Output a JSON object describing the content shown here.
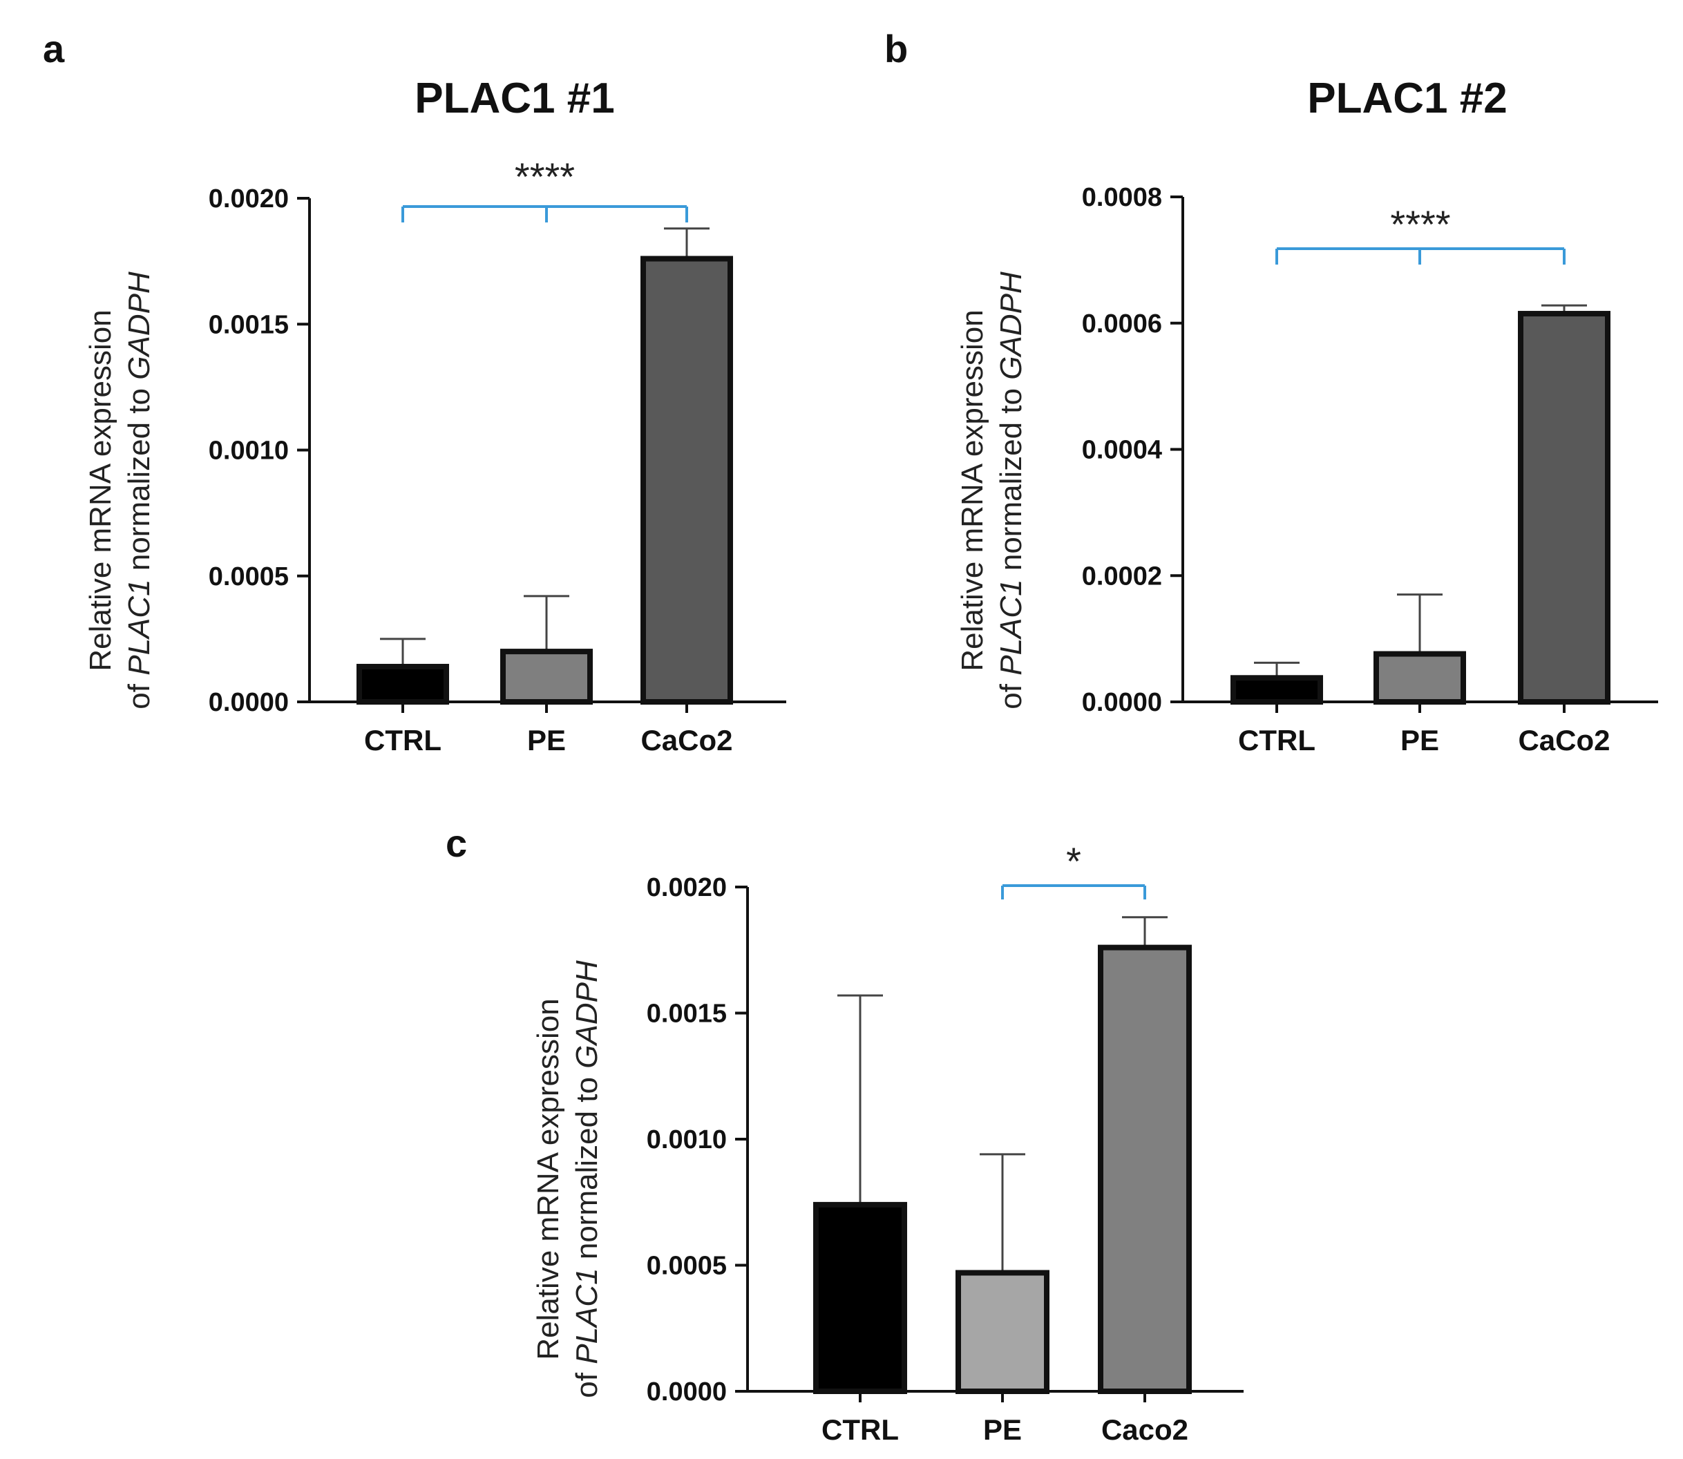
{
  "chart_data": [
    {
      "type": "bar",
      "panel": "a",
      "title": "PLAC1 #1",
      "xlabel": "",
      "ylabel_line1": "Relative mRNA expression",
      "ylabel_line2": [
        "of ",
        "PLAC1",
        " normalized to ",
        "GADPH"
      ],
      "ylim": [
        0,
        0.002
      ],
      "yticks": [
        0,
        0.0005,
        0.001,
        0.0015,
        0.002
      ],
      "ytick_labels": [
        "0.0000",
        "0.0005",
        "0.0010",
        "0.0015",
        "0.0020"
      ],
      "categories": [
        "CTRL",
        "PE",
        "CaCo2"
      ],
      "values": [
        0.00014,
        0.0002,
        0.00176
      ],
      "errors": [
        0.00011,
        0.00022,
        0.00012
      ],
      "colors": [
        "#000000",
        "#7f7f7f",
        "#595959"
      ],
      "significance": {
        "label": "****",
        "from": 0,
        "to": 2,
        "mid_tick": true
      }
    },
    {
      "type": "bar",
      "panel": "b",
      "title": "PLAC1 #2",
      "xlabel": "",
      "ylabel_line1": "Relative mRNA expression",
      "ylabel_line2": [
        "of ",
        "PLAC1",
        " normalized to ",
        "GADPH"
      ],
      "ylim": [
        0,
        0.0008
      ],
      "yticks": [
        0,
        0.0002,
        0.0004,
        0.0006,
        0.0008
      ],
      "ytick_labels": [
        "0.0000",
        "0.0002",
        "0.0004",
        "0.0006",
        "0.0008"
      ],
      "categories": [
        "CTRL",
        "PE",
        "CaCo2"
      ],
      "values": [
        3.8e-05,
        7.6e-05,
        0.000615
      ],
      "errors": [
        2.4e-05,
        9.4e-05,
        1.3e-05
      ],
      "colors": [
        "#000000",
        "#7f7f7f",
        "#595959"
      ],
      "significance": {
        "label": "****",
        "from": 0,
        "to": 2,
        "mid_tick": true
      }
    },
    {
      "type": "bar",
      "panel": "c",
      "title": "",
      "xlabel": "",
      "ylabel_line1": "Relative mRNA expression",
      "ylabel_line2": [
        "of ",
        "PLAC1",
        " normalized to ",
        "GADPH"
      ],
      "ylim": [
        0,
        0.002
      ],
      "yticks": [
        0,
        0.0005,
        0.001,
        0.0015,
        0.002
      ],
      "ytick_labels": [
        "0.0000",
        "0.0005",
        "0.0010",
        "0.0015",
        "0.0020"
      ],
      "categories": [
        "CTRL",
        "PE",
        "Caco2"
      ],
      "values": [
        0.00074,
        0.00047,
        0.00176
      ],
      "errors": [
        0.00083,
        0.00047,
        0.00012
      ],
      "colors": [
        "#000000",
        "#a6a6a6",
        "#808080"
      ],
      "significance": {
        "label": "*",
        "from": 1,
        "to": 2,
        "mid_tick": false
      }
    }
  ],
  "style": {
    "axis_color": "#111111",
    "bar_edge_color": "#111111",
    "significance_color": "#3a9ad9"
  }
}
